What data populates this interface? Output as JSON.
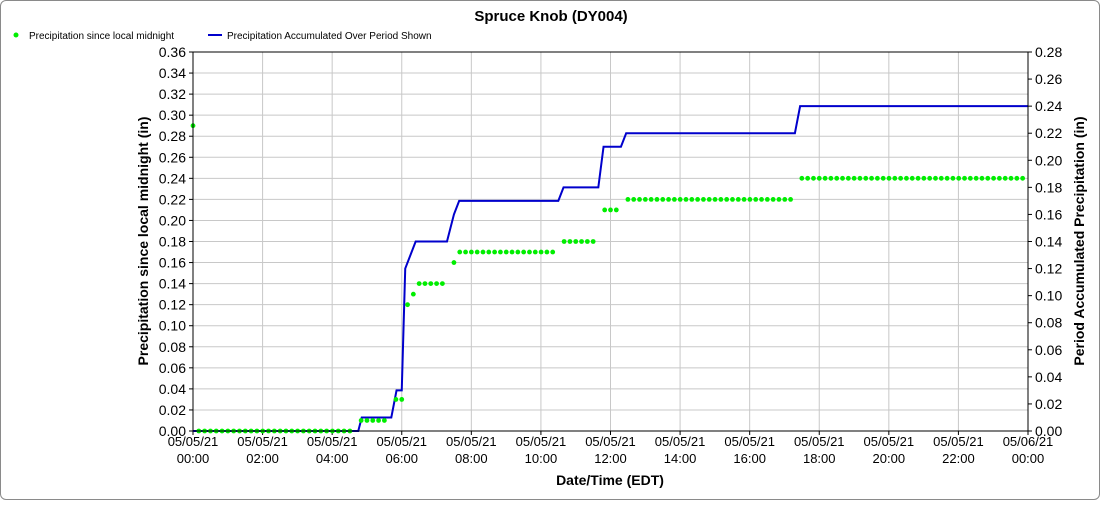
{
  "chart_data": {
    "type": "line",
    "title": "Spruce Knob (DY004)",
    "xlabel": "Date/Time (EDT)",
    "ylabel_left": "Precipitation since local midnight (in)",
    "ylabel_right": "Period Accumulated Precipitation (in)",
    "x_unit": "hours since 05/05/21 00:00 (EDT)",
    "xlim": [
      0,
      24
    ],
    "ylim_left": [
      0,
      0.36
    ],
    "ylim_right": [
      0,
      0.28
    ],
    "grid": true,
    "legend_position": "top-left",
    "x_ticks": [
      {
        "value": 0,
        "date": "05/05/21",
        "time": "00:00"
      },
      {
        "value": 2,
        "date": "05/05/21",
        "time": "02:00"
      },
      {
        "value": 4,
        "date": "05/05/21",
        "time": "04:00"
      },
      {
        "value": 6,
        "date": "05/05/21",
        "time": "06:00"
      },
      {
        "value": 8,
        "date": "05/05/21",
        "time": "08:00"
      },
      {
        "value": 10,
        "date": "05/05/21",
        "time": "10:00"
      },
      {
        "value": 12,
        "date": "05/05/21",
        "time": "12:00"
      },
      {
        "value": 14,
        "date": "05/05/21",
        "time": "14:00"
      },
      {
        "value": 16,
        "date": "05/05/21",
        "time": "16:00"
      },
      {
        "value": 18,
        "date": "05/05/21",
        "time": "18:00"
      },
      {
        "value": 20,
        "date": "05/05/21",
        "time": "20:00"
      },
      {
        "value": 22,
        "date": "05/05/21",
        "time": "22:00"
      },
      {
        "value": 24,
        "date": "05/06/21",
        "time": "00:00"
      }
    ],
    "y_ticks_left": [
      "0.00",
      "0.02",
      "0.04",
      "0.06",
      "0.08",
      "0.10",
      "0.12",
      "0.14",
      "0.16",
      "0.18",
      "0.20",
      "0.22",
      "0.24",
      "0.26",
      "0.28",
      "0.30",
      "0.32",
      "0.34",
      "0.36"
    ],
    "y_ticks_right": [
      "0.00",
      "0.02",
      "0.04",
      "0.06",
      "0.08",
      "0.10",
      "0.12",
      "0.14",
      "0.16",
      "0.18",
      "0.20",
      "0.22",
      "0.24",
      "0.26",
      "0.28"
    ],
    "series": [
      {
        "name": "Precipitation since local midnight",
        "axis": "left",
        "style": "points",
        "color": "#00ee00",
        "points": [
          [
            0.0,
            0.29
          ],
          {
            "from": 0.167,
            "to": 4.667,
            "step": 0.167,
            "y": 0.0
          },
          {
            "from": 4.833,
            "to": 5.667,
            "step": 0.167,
            "y": 0.01
          },
          [
            5.833,
            0.03
          ],
          [
            6.0,
            0.03
          ],
          [
            6.167,
            0.12
          ],
          [
            6.333,
            0.13
          ],
          {
            "from": 6.5,
            "to": 7.333,
            "step": 0.167,
            "y": 0.14
          },
          [
            7.5,
            0.16
          ],
          {
            "from": 7.667,
            "to": 10.5,
            "step": 0.167,
            "y": 0.17
          },
          {
            "from": 10.667,
            "to": 11.667,
            "step": 0.167,
            "y": 0.18
          },
          {
            "from": 11.833,
            "to": 12.333,
            "step": 0.167,
            "y": 0.21
          },
          {
            "from": 12.5,
            "to": 17.333,
            "step": 0.167,
            "y": 0.22
          },
          {
            "from": 17.5,
            "to": 24.0,
            "step": 0.167,
            "y": 0.24
          }
        ]
      },
      {
        "name": "Precipitation Accumulated Over Period Shown",
        "axis": "right",
        "style": "line",
        "color": "#0000cc",
        "points": [
          [
            0.0,
            0.0
          ],
          [
            4.75,
            0.0
          ],
          [
            4.85,
            0.01
          ],
          [
            5.7,
            0.01
          ],
          [
            5.85,
            0.03
          ],
          [
            6.0,
            0.03
          ],
          [
            6.1,
            0.12
          ],
          [
            6.4,
            0.14
          ],
          [
            7.3,
            0.14
          ],
          [
            7.5,
            0.16
          ],
          [
            7.65,
            0.17
          ],
          [
            10.5,
            0.17
          ],
          [
            10.65,
            0.18
          ],
          [
            11.65,
            0.18
          ],
          [
            11.8,
            0.21
          ],
          [
            12.3,
            0.21
          ],
          [
            12.45,
            0.22
          ],
          [
            17.3,
            0.22
          ],
          [
            17.45,
            0.24
          ],
          [
            24.0,
            0.24
          ]
        ]
      }
    ]
  }
}
